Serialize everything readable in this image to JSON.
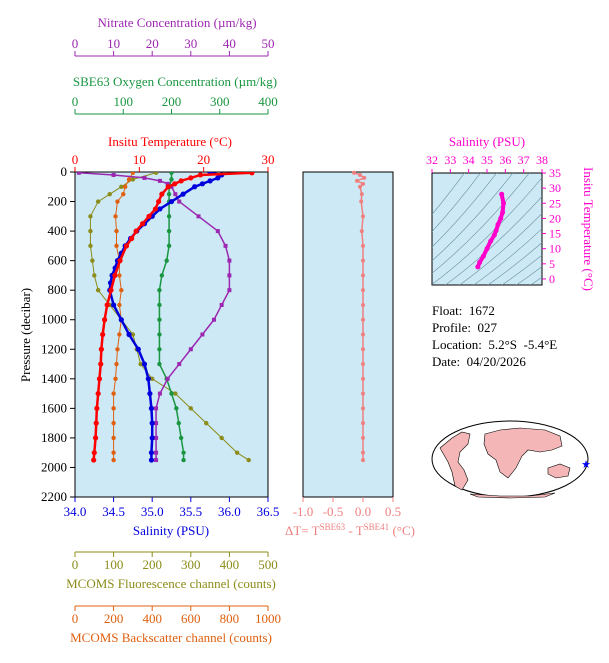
{
  "colors": {
    "temperature": "#ff0000",
    "salinity": "#0000dd",
    "oxygen": "#1a9641",
    "nitrate": "#9c27b0",
    "fluorescence": "#8c8c1a",
    "backscatter": "#e06010",
    "delta_t": "#f08080",
    "ts_curve": "#ff00cc",
    "panel_bg": "#cce9f5",
    "map_land": "#f4b6b6",
    "map_ocean": "#ffffff",
    "float_marker": "#0000ff"
  },
  "info": {
    "float": "Float:  1672",
    "profile": "Profile:  027",
    "location": "Location:  5.2°S  -5.4°E",
    "date": "Date:  04/20/2026"
  },
  "chart_data": [
    {
      "type": "line",
      "name": "main-profile",
      "ylabel": "Pressure (decibar)",
      "ylim": [
        0,
        2200
      ],
      "yticks": [
        0,
        200,
        400,
        600,
        800,
        1000,
        1200,
        1400,
        1600,
        1800,
        2000,
        2200
      ],
      "axes": {
        "nitrate": {
          "label": "Nitrate Concentration (µm/kg)",
          "range": [
            0,
            50
          ],
          "ticks": [
            0,
            10,
            20,
            30,
            40,
            50
          ]
        },
        "oxygen": {
          "label": "SBE63 Oxygen Concentration (µm/kg)",
          "range": [
            0,
            400
          ],
          "ticks": [
            0,
            100,
            200,
            300,
            400
          ]
        },
        "temperature": {
          "label": "Insitu Temperature (°C)",
          "range": [
            0,
            30
          ],
          "ticks": [
            0,
            10,
            20,
            30
          ]
        },
        "salinity": {
          "label": "Salinity (PSU)",
          "range": [
            34.0,
            36.5
          ],
          "ticks": [
            "34.0",
            "34.5",
            "35.0",
            "35.5",
            "36.0",
            "36.5"
          ]
        },
        "fluorescence": {
          "label": "MCOMS Fluorescence channel (counts)",
          "range": [
            0,
            500
          ],
          "ticks": [
            0,
            100,
            200,
            300,
            400,
            500
          ]
        },
        "backscatter": {
          "label": "MCOMS Backscatter channel (counts)",
          "range": [
            0,
            1000
          ],
          "ticks": [
            0,
            200,
            400,
            600,
            800,
            1000
          ]
        }
      },
      "series": [
        {
          "key": "temperature",
          "pressure": [
            5,
            20,
            40,
            60,
            80,
            100,
            150,
            200,
            250,
            300,
            350,
            400,
            450,
            500,
            600,
            700,
            800,
            900,
            1000,
            1100,
            1200,
            1300,
            1400,
            1500,
            1600,
            1700,
            1800,
            1900,
            1950
          ],
          "values": [
            27.5,
            19.5,
            18.0,
            16.5,
            15.5,
            14.5,
            13.5,
            13.0,
            12.5,
            11.5,
            10.5,
            9.5,
            8.8,
            8.0,
            7.0,
            6.2,
            5.6,
            5.0,
            4.6,
            4.3,
            4.1,
            4.0,
            3.8,
            3.6,
            3.4,
            3.3,
            3.2,
            3.0,
            2.9
          ]
        },
        {
          "key": "salinity",
          "pressure": [
            5,
            20,
            40,
            60,
            80,
            100,
            150,
            200,
            250,
            300,
            350,
            400,
            450,
            500,
            550,
            600,
            650,
            700,
            750,
            800,
            900,
            1000,
            1100,
            1200,
            1300,
            1400,
            1500,
            1600,
            1700,
            1800,
            1900,
            1950
          ],
          "values": [
            35.75,
            35.9,
            35.85,
            35.75,
            35.65,
            35.55,
            35.4,
            35.25,
            35.1,
            35.0,
            34.9,
            34.8,
            34.72,
            34.65,
            34.6,
            34.55,
            34.52,
            34.48,
            34.46,
            34.45,
            34.5,
            34.6,
            34.7,
            34.82,
            34.9,
            34.95,
            34.97,
            34.99,
            35.0,
            35.0,
            34.99,
            34.99
          ]
        },
        {
          "key": "nitrate",
          "pressure": [
            5,
            20,
            40,
            60,
            80,
            100,
            150,
            200,
            300,
            400,
            500,
            600,
            700,
            800,
            900,
            1000,
            1100,
            1200,
            1300,
            1400,
            1500,
            1600,
            1700,
            1800,
            1900,
            1950
          ],
          "values": [
            1,
            10,
            18,
            22,
            24,
            25,
            26,
            27,
            32,
            37,
            39,
            40,
            40,
            40,
            38,
            36,
            33,
            30,
            27,
            24,
            22,
            21,
            21,
            21,
            21,
            21
          ]
        },
        {
          "key": "oxygen",
          "pressure": [
            5,
            50,
            100,
            150,
            200,
            300,
            400,
            500,
            600,
            700,
            800,
            900,
            1000,
            1100,
            1200,
            1300,
            1400,
            1500,
            1600,
            1700,
            1800,
            1900,
            1950
          ],
          "values": [
            200,
            200,
            195,
            195,
            195,
            195,
            195,
            195,
            190,
            180,
            175,
            175,
            175,
            175,
            175,
            175,
            190,
            200,
            210,
            215,
            220,
            225,
            225
          ]
        },
        {
          "key": "backscatter",
          "pressure": [
            5,
            50,
            100,
            150,
            200,
            300,
            400,
            500,
            600,
            700,
            800,
            900,
            1000,
            1100,
            1200,
            1300,
            1400,
            1500,
            1600,
            1700,
            1800,
            1900,
            1950
          ],
          "values": [
            300,
            280,
            260,
            250,
            220,
            210,
            215,
            215,
            230,
            230,
            240,
            230,
            240,
            230,
            220,
            215,
            210,
            200,
            200,
            200,
            200,
            200,
            200
          ]
        },
        {
          "key": "fluorescence",
          "pressure": [
            5,
            50,
            100,
            150,
            200,
            300,
            400,
            500,
            600,
            700,
            800,
            900,
            1000,
            1100,
            1200,
            1300,
            1400,
            1500,
            1600,
            1700,
            1800,
            1900,
            1950
          ],
          "values": [
            210,
            150,
            120,
            90,
            60,
            40,
            40,
            40,
            45,
            50,
            60,
            90,
            120,
            150,
            160,
            170,
            200,
            260,
            300,
            340,
            380,
            420,
            450
          ]
        }
      ]
    },
    {
      "type": "line",
      "name": "delta-t",
      "xlabel": "ΔT= T^SBE63 - T^SBE41 (°C)",
      "xlim": [
        -1.0,
        0.5
      ],
      "xticks": [
        "-1.0",
        "-0.5",
        "0.0",
        "0.5"
      ],
      "ylim": [
        0,
        2200
      ],
      "pressure": [
        5,
        20,
        40,
        60,
        80,
        100,
        150,
        200,
        300,
        400,
        500,
        600,
        700,
        800,
        900,
        1000,
        1100,
        1200,
        1300,
        1400,
        1500,
        1600,
        1700,
        1800,
        1900,
        1950
      ],
      "values": [
        -0.15,
        -0.05,
        0.02,
        -0.1,
        0.0,
        -0.05,
        -0.02,
        -0.03,
        0.0,
        -0.02,
        0.0,
        0.0,
        0.0,
        0.0,
        0.0,
        0.0,
        0.0,
        0.0,
        0.0,
        0.0,
        0.0,
        0.0,
        0.0,
        0.0,
        0.0,
        0.0
      ]
    },
    {
      "type": "scatter",
      "name": "ts-diagram",
      "xlabel": "Salinity (PSU)",
      "ylabel": "Insitu Temperature (°C)",
      "xlim": [
        32,
        38
      ],
      "ylim": [
        -2,
        35
      ],
      "xticks": [
        32,
        33,
        34,
        35,
        36,
        37,
        38
      ],
      "yticks": [
        0,
        5,
        10,
        15,
        20,
        25,
        30,
        35
      ],
      "salinity": [
        34.5,
        34.6,
        34.8,
        35.0,
        35.2,
        35.4,
        35.5,
        35.6,
        35.75,
        35.85,
        35.9,
        35.8
      ],
      "temperature": [
        4.0,
        5.5,
        7.5,
        10.0,
        12.5,
        14.5,
        16.0,
        18.0,
        20.0,
        22.0,
        25.0,
        28.0
      ]
    }
  ]
}
